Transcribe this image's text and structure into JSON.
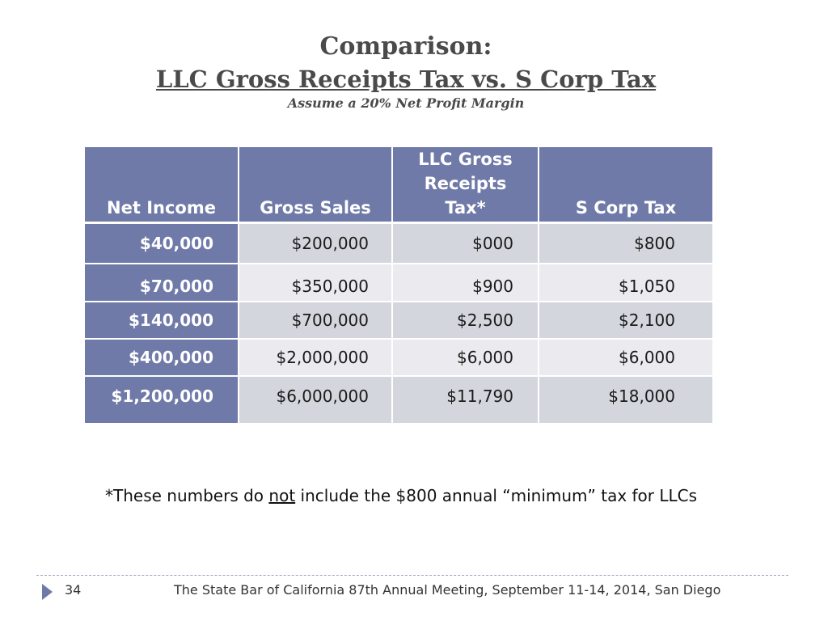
{
  "title": {
    "line1": "Comparison:",
    "line2": "LLC Gross Receipts Tax vs. S Corp Tax",
    "subtitle": "Assume a 20% Net Profit Margin"
  },
  "table": {
    "headers": [
      "Net Income",
      "Gross Sales",
      "LLC Gross Receipts Tax*",
      "S Corp Tax"
    ],
    "rows": [
      [
        "$40,000",
        "$200,000",
        "$000",
        "$800"
      ],
      [
        "$70,000",
        "$350,000",
        "$900",
        "$1,050"
      ],
      [
        "$140,000",
        "$700,000",
        "$2,500",
        "$2,100"
      ],
      [
        "$400,000",
        "$2,000,000",
        "$6,000",
        "$6,000"
      ],
      [
        "$1,200,000",
        "$6,000,000",
        "$11,790",
        "$18,000"
      ]
    ]
  },
  "footnote": {
    "before": "*These numbers do ",
    "emphasis": "not",
    "after": " include the $800 annual “minimum” tax for LLCs"
  },
  "footer": {
    "page_number": "34",
    "text": "The State Bar of California 87th Annual Meeting,  September 11-14,  2014,  San Diego"
  },
  "colors": {
    "header_fill": "#6f7aa8",
    "row_dark": "#d4d6dd",
    "row_light": "#ebebef"
  }
}
